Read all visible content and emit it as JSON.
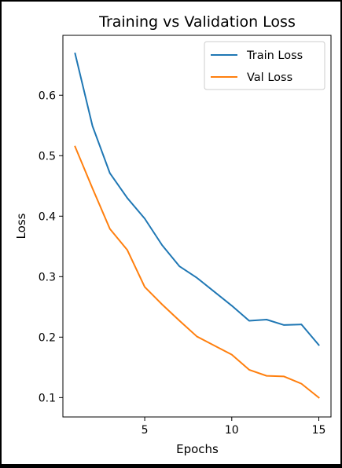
{
  "chart_data": {
    "type": "line",
    "title": "Training vs Validation Loss",
    "xlabel": "Epochs",
    "ylabel": "Loss",
    "x": [
      1,
      2,
      3,
      4,
      5,
      6,
      7,
      8,
      9,
      10,
      11,
      12,
      13,
      14,
      15
    ],
    "xlim": [
      0.3,
      15.7
    ],
    "ylim": [
      0.068,
      0.699
    ],
    "xticks": [
      5,
      10,
      15
    ],
    "yticks": [
      0.1,
      0.2,
      0.3,
      0.4,
      0.5,
      0.6
    ],
    "xtick_labels": [
      "5",
      "10",
      "15"
    ],
    "ytick_labels": [
      "0.1",
      "0.2",
      "0.3",
      "0.4",
      "0.5",
      "0.6"
    ],
    "grid": false,
    "legend_position": "top-right",
    "series": [
      {
        "name": "Train Loss",
        "color": "#1f77b4",
        "values": [
          0.669,
          0.549,
          0.471,
          0.43,
          0.396,
          0.352,
          0.317,
          0.298,
          0.275,
          0.252,
          0.227,
          0.229,
          0.22,
          0.221,
          0.187
        ]
      },
      {
        "name": "Val Loss",
        "color": "#ff7f0e",
        "values": [
          0.515,
          0.446,
          0.379,
          0.344,
          0.283,
          0.254,
          0.227,
          0.201,
          0.186,
          0.171,
          0.146,
          0.136,
          0.135,
          0.123,
          0.1
        ]
      }
    ]
  }
}
